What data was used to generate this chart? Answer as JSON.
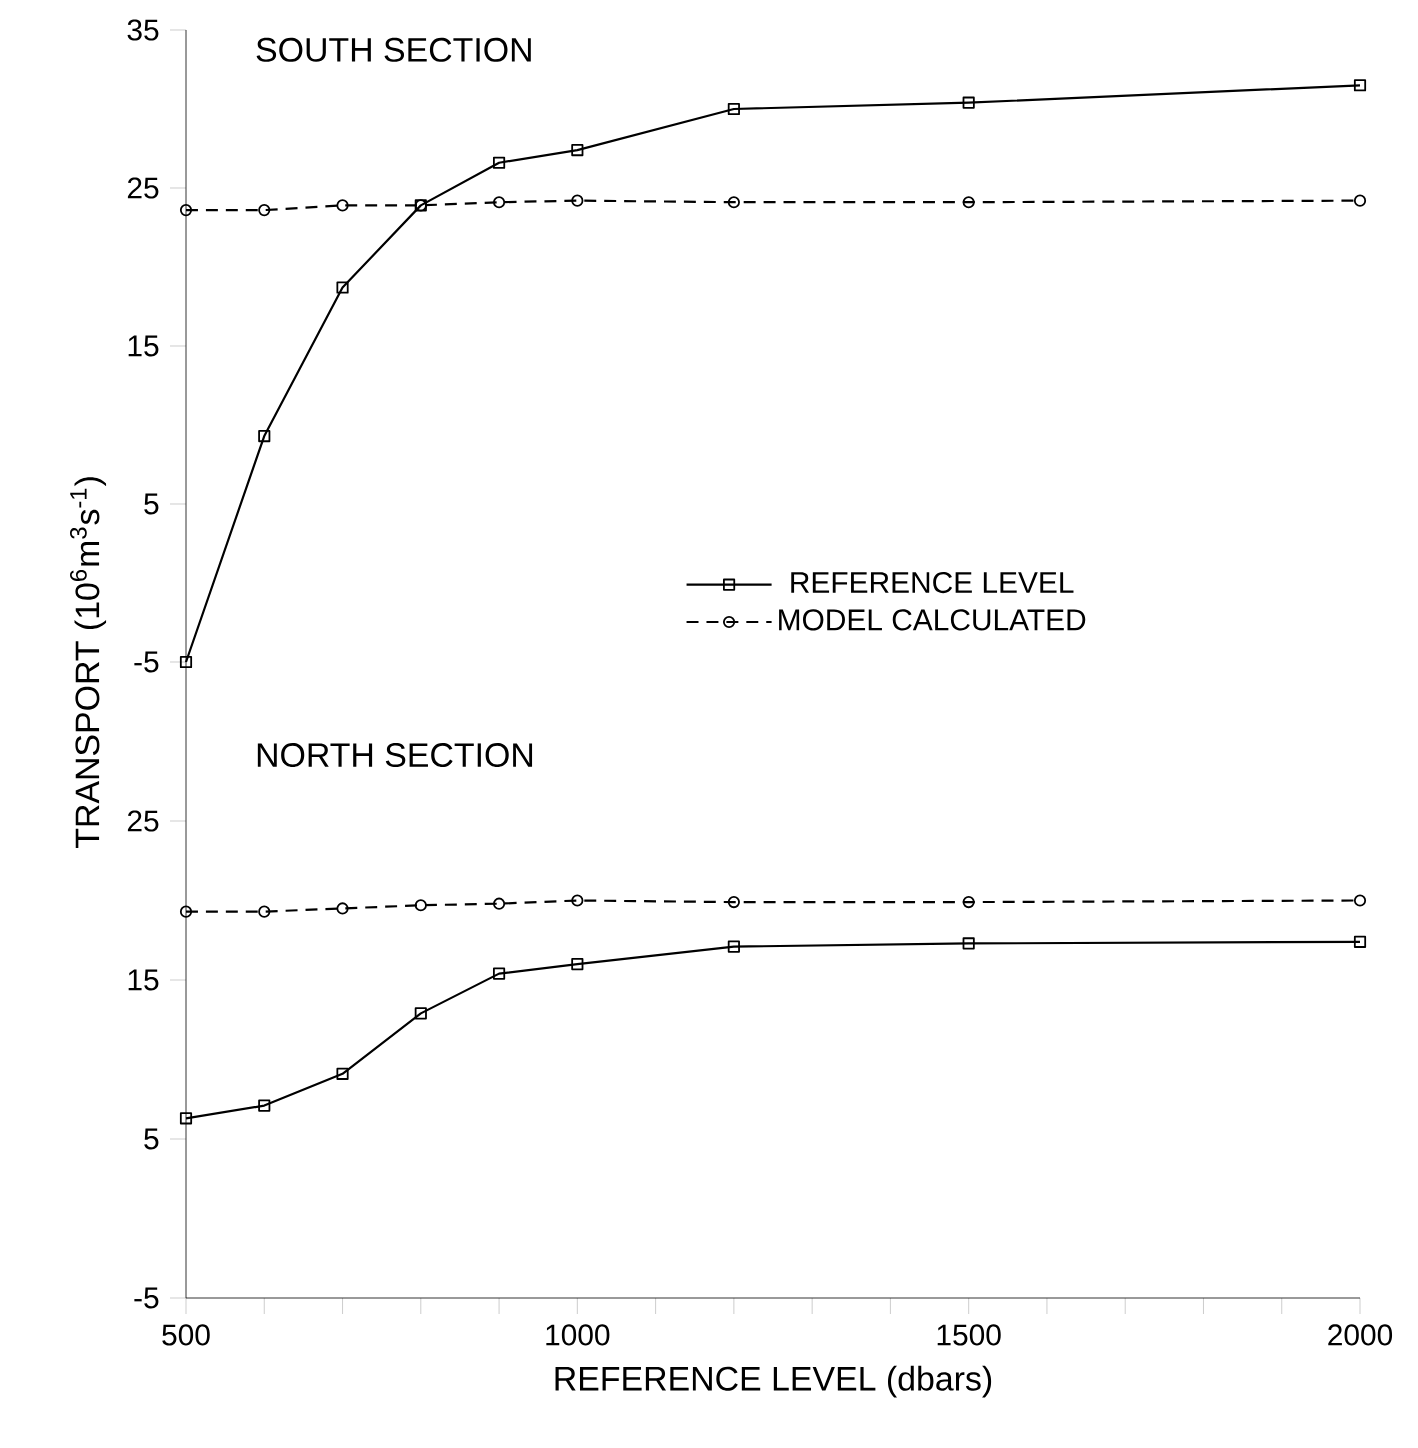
{
  "chart_data": [
    {
      "type": "line",
      "title": "SOUTH SECTION",
      "ylabel": "TRANSPORT (10$^{6}$m$^{3}$s$^{-1}$)",
      "x": [
        500,
        600,
        700,
        800,
        900,
        1000,
        1200,
        1500,
        2000
      ],
      "series": [
        {
          "name": "REFERENCE LEVEL",
          "color": "#000000",
          "marker": "square",
          "line_style": "solid",
          "values": [
            -5,
            9.3,
            18.7,
            23.9,
            26.6,
            27.4,
            30.0,
            30.4,
            31.5
          ]
        },
        {
          "name": "MODEL CALCULATED",
          "color": "#000000",
          "marker": "circle",
          "line_style": "dashed",
          "values": [
            23.6,
            23.6,
            23.9,
            23.9,
            24.1,
            24.2,
            24.1,
            24.1,
            24.2
          ]
        }
      ],
      "xlim": [
        500,
        2000
      ],
      "ylim": [
        -5,
        35
      ],
      "yticks": [
        -5,
        5,
        15,
        25,
        35
      ],
      "tick_labels": "y",
      "legend": "bottom right"
    },
    {
      "type": "line",
      "title": "NORTH SECTION",
      "xlabel": "REFERENCE LEVEL (dbars)",
      "x": [
        500,
        600,
        700,
        800,
        900,
        1000,
        1200,
        1500,
        2000
      ],
      "series": [
        {
          "color": "#000000",
          "marker": "square",
          "line_style": "solid",
          "values": [
            6.3,
            7.1,
            9.1,
            12.9,
            15.4,
            16.0,
            17.1,
            17.3,
            17.4
          ]
        },
        {
          "color": "#000000",
          "marker": "circle",
          "line_style": "dashed",
          "values": [
            19.3,
            19.3,
            19.5,
            19.7,
            19.8,
            20.0,
            19.9,
            19.9,
            20.0
          ]
        }
      ],
      "xlim": [
        500,
        2000
      ],
      "ylim": [
        -5,
        35
      ],
      "yticks": [
        -5,
        5,
        15,
        25
      ],
      "xticks": [
        500,
        {
          "value": 600,
          "label": null
        },
        {
          "value": 700,
          "label": null
        },
        {
          "value": 800,
          "label": null
        },
        {
          "value": 900,
          "label": null
        },
        1000,
        {
          "value": 1100,
          "label": null
        },
        {
          "value": 1200,
          "label": null
        },
        {
          "value": 1300,
          "label": null
        },
        {
          "value": 1400,
          "label": null
        },
        1500,
        {
          "value": 1600,
          "label": null
        },
        {
          "value": 1700,
          "label": null
        },
        {
          "value": 1800,
          "label": null
        },
        {
          "value": 1900,
          "label": null
        },
        2000
      ]
    }
  ]
}
